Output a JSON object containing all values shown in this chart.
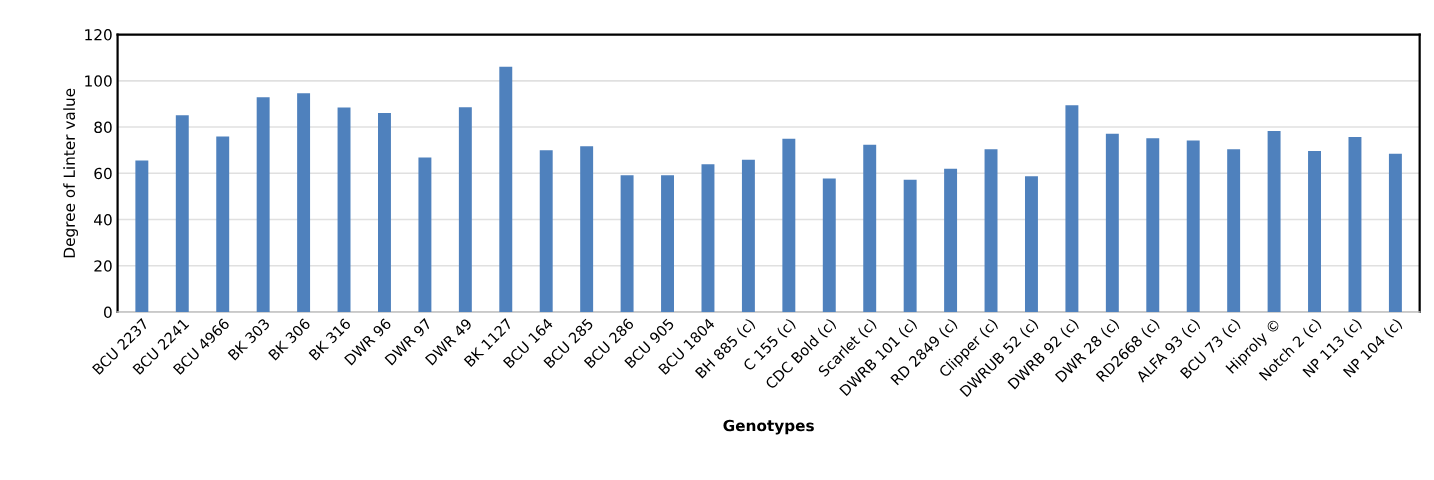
{
  "chart_data": {
    "type": "bar",
    "xlabel": "Genotypes",
    "ylabel": "Degree of Linter value",
    "categories": [
      "BCU 2237",
      "BCU 2241",
      "BCU 4966",
      "BK 303",
      "BK 306",
      "BK 316",
      "DWR 96",
      "DWR 97",
      "DWR 49",
      "BK 1127",
      "BCU 164",
      "BCU 285",
      "BCU 286",
      "BCU 905",
      "BCU 1804",
      "BH 885 (c)",
      "C 155 (c)",
      "CDC Bold (c)",
      "Scarlet (c)",
      "DWRB 101 (c)",
      "RD 2849 (c)",
      "Clipper (c)",
      "DWRUB 52 (c)",
      "DWRB 92 (c)",
      "DWR 28 (c)",
      "RD2668 (c)",
      "ALFA 93 (c)",
      "BCU 73 (c)",
      "Hiproly ©",
      "Notch 2 (c)",
      "NP 113 (c)",
      "NP 104 (c)"
    ],
    "values": [
      65.5,
      85.1,
      75.9,
      92.9,
      94.6,
      88.4,
      86.1,
      66.8,
      88.6,
      106.1,
      70.0,
      71.7,
      59.1,
      59.1,
      63.9,
      65.9,
      74.9,
      57.7,
      72.3,
      57.2,
      62.0,
      70.4,
      58.7,
      89.4,
      77.1,
      75.1,
      74.2,
      70.4,
      78.3,
      69.6,
      75.7,
      68.4
    ],
    "color": "#4f81bd",
    "ylim": [
      0,
      120
    ],
    "yticks": [
      0,
      20,
      40,
      60,
      80,
      100,
      120
    ],
    "grid": "y",
    "legend": false
  }
}
